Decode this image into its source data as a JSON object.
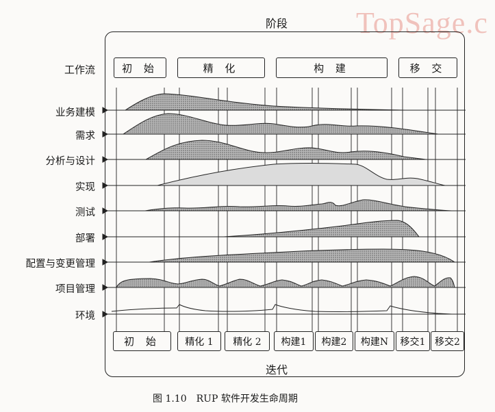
{
  "watermark": "TopSage.c",
  "phase_title": "阶段",
  "iteration_title": "迭代",
  "workflow_title": "工作流",
  "phases": [
    "初 始",
    "精 化",
    "构 建",
    "移 交"
  ],
  "iterations": [
    "初 始",
    "精化 1",
    "精化 2",
    "构建1",
    "构建2",
    "构建N",
    "移交1",
    "移交2"
  ],
  "workflows": [
    "业务建模",
    "需求",
    "分析与设计",
    "实现",
    "测试",
    "部署",
    "配置与变更管理",
    "项目管理",
    "环境"
  ],
  "caption": "图 1.10　RUP 软件开发生命周期",
  "colors": {
    "line": "#222222",
    "fill": "#9a9a9a",
    "background": "#fbfaf8"
  }
}
